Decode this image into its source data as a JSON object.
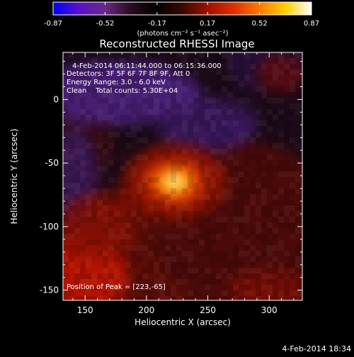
{
  "chart_data": {
    "type": "heatmap",
    "title": "Reconstructed RHESSI Image",
    "xlabel": "Heliocentric X (arcsec)",
    "ylabel": "Heliocentric Y (arcsec)",
    "xlim": [
      132,
      327
    ],
    "ylim": [
      -158,
      37
    ],
    "x_ticks": [
      150,
      200,
      250,
      300
    ],
    "y_ticks": [
      0,
      -50,
      -100,
      -150
    ],
    "colorbar": {
      "min": -0.87,
      "max": 0.87,
      "ticks": [
        "-0.87",
        "-0.52",
        "-0.17",
        "0.17",
        "0.52",
        "0.87"
      ],
      "unit_label": "(photons cm⁻² s⁻¹ asec⁻²)",
      "colormap": [
        "#0000ff",
        "#5a10c8",
        "#6a2a88",
        "#2a0c20",
        "#000000",
        "#3a0800",
        "#a01000",
        "#e03000",
        "#ff7a00",
        "#ffd000",
        "#ffffff"
      ]
    },
    "annotations": [
      "4-Feb-2014 06:11:44.000 to 06:15:36.000",
      "Detectors: 3F 5F 6F 7F 8F 9F, Att 0",
      "Energy Range: 3.0 - 6.0 keV",
      "Clean    Total counts: 5.30E+04"
    ],
    "peak_label": "Position of Peak = [223,-65]",
    "peak": [
      223,
      -65
    ]
  },
  "footer_timestamp": "4-Feb-2014 18:34"
}
